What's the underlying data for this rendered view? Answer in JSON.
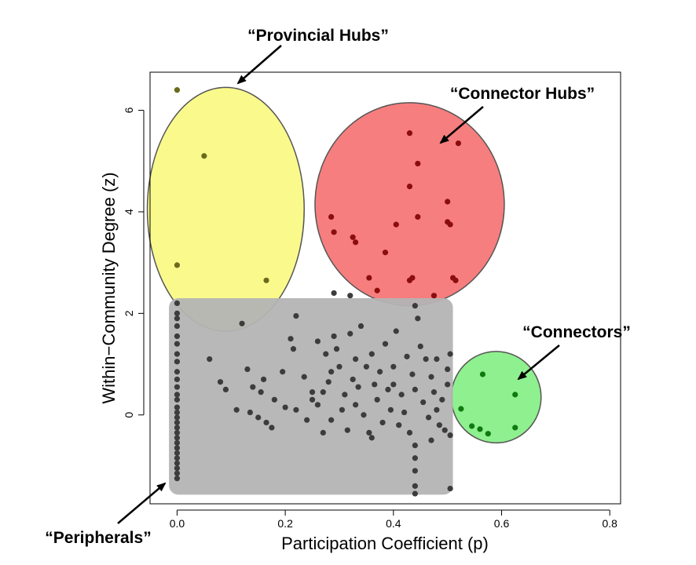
{
  "chart_data": {
    "type": "scatter",
    "xlabel": "Participation Coefficient (p)",
    "ylabel": "Within−Community Degree (z)",
    "xlim": [
      -0.05,
      0.82
    ],
    "ylim": [
      -1.75,
      6.75
    ],
    "x_ticks": [
      0.0,
      0.2,
      0.4,
      0.6,
      0.8
    ],
    "x_tick_labels": [
      "0.0",
      "0.2",
      "0.4",
      "0.6",
      "0.8"
    ],
    "y_ticks": [
      0,
      2,
      4,
      6
    ],
    "y_tick_labels": [
      "0",
      "2",
      "4",
      "6"
    ],
    "grid": false,
    "regions": [
      {
        "label": "“Provincial Hubs”",
        "shape": "ellipse",
        "color": "#fafa8c",
        "cx": 0.09,
        "cy": 4.05,
        "rx": 0.145,
        "ry": 2.4
      },
      {
        "label": "“Connector Hubs”",
        "shape": "ellipse",
        "color": "#f77e7e",
        "cx": 0.43,
        "cy": 4.15,
        "rx": 0.175,
        "ry": 2.0
      },
      {
        "label": "“Connectors”",
        "shape": "ellipse",
        "color": "#8ff08f",
        "cx": 0.59,
        "cy": 0.35,
        "rx": 0.083,
        "ry": 0.9
      },
      {
        "label": "“Peripherals”",
        "shape": "rect",
        "color": "#b4b4b4",
        "x0": -0.015,
        "x1": 0.51,
        "y0": -1.57,
        "y1": 2.3
      }
    ],
    "series": [
      {
        "group": "provincial_hubs",
        "color": "#6b6b1e",
        "points": [
          [
            0.0,
            6.4
          ],
          [
            0.05,
            5.1
          ],
          [
            0.0,
            2.95
          ],
          [
            0.165,
            2.65
          ]
        ]
      },
      {
        "group": "connector_hubs",
        "color": "#8b0d0d",
        "points": [
          [
            0.43,
            5.55
          ],
          [
            0.52,
            5.35
          ],
          [
            0.445,
            4.95
          ],
          [
            0.43,
            4.5
          ],
          [
            0.5,
            4.2
          ],
          [
            0.285,
            3.9
          ],
          [
            0.445,
            3.9
          ],
          [
            0.5,
            3.8
          ],
          [
            0.505,
            3.75
          ],
          [
            0.405,
            3.75
          ],
          [
            0.29,
            3.6
          ],
          [
            0.325,
            3.5
          ],
          [
            0.33,
            3.4
          ],
          [
            0.385,
            3.2
          ],
          [
            0.355,
            2.7
          ],
          [
            0.435,
            2.7
          ],
          [
            0.43,
            2.65
          ],
          [
            0.51,
            2.7
          ],
          [
            0.515,
            2.65
          ],
          [
            0.37,
            2.45
          ],
          [
            0.475,
            2.35
          ]
        ]
      },
      {
        "group": "connectors",
        "color": "#0f7a0f",
        "points": [
          [
            0.565,
            0.8
          ],
          [
            0.625,
            0.4
          ],
          [
            0.525,
            0.12
          ],
          [
            0.545,
            -0.22
          ],
          [
            0.56,
            -0.28
          ],
          [
            0.575,
            -0.37
          ],
          [
            0.625,
            -0.25
          ]
        ]
      },
      {
        "group": "peripherals",
        "color": "#3c3c3c",
        "points": [
          [
            0.0,
            2.2
          ],
          [
            0.0,
            2.0
          ],
          [
            0.0,
            1.9
          ],
          [
            0.0,
            1.75
          ],
          [
            0.0,
            1.55
          ],
          [
            0.0,
            1.4
          ],
          [
            0.0,
            1.2
          ],
          [
            0.0,
            1.05
          ],
          [
            0.0,
            0.85
          ],
          [
            0.0,
            0.7
          ],
          [
            0.0,
            0.55
          ],
          [
            0.0,
            0.4
          ],
          [
            0.0,
            0.3
          ],
          [
            0.0,
            0.15
          ],
          [
            0.0,
            0.05
          ],
          [
            0.0,
            -0.05
          ],
          [
            0.0,
            -0.15
          ],
          [
            0.0,
            -0.25
          ],
          [
            0.0,
            -0.35
          ],
          [
            0.0,
            -0.45
          ],
          [
            0.0,
            -0.55
          ],
          [
            0.0,
            -0.65
          ],
          [
            0.0,
            -0.75
          ],
          [
            0.0,
            -0.85
          ],
          [
            0.0,
            -0.95
          ],
          [
            0.0,
            -1.05
          ],
          [
            0.0,
            -1.15
          ],
          [
            0.0,
            -1.25
          ],
          [
            0.06,
            1.1
          ],
          [
            0.08,
            0.65
          ],
          [
            0.09,
            0.5
          ],
          [
            0.11,
            0.1
          ],
          [
            0.12,
            1.8
          ],
          [
            0.13,
            0.9
          ],
          [
            0.135,
            0.05
          ],
          [
            0.14,
            0.55
          ],
          [
            0.15,
            -0.05
          ],
          [
            0.155,
            0.45
          ],
          [
            0.16,
            0.7
          ],
          [
            0.165,
            -0.15
          ],
          [
            0.175,
            -0.25
          ],
          [
            0.18,
            0.3
          ],
          [
            0.195,
            0.85
          ],
          [
            0.2,
            0.15
          ],
          [
            0.21,
            1.5
          ],
          [
            0.215,
            1.3
          ],
          [
            0.22,
            1.95
          ],
          [
            0.22,
            0.1
          ],
          [
            0.235,
            0.75
          ],
          [
            0.24,
            -0.1
          ],
          [
            0.25,
            0.45
          ],
          [
            0.26,
            1.45
          ],
          [
            0.26,
            0.2
          ],
          [
            0.27,
            -0.35
          ],
          [
            0.275,
            1.2
          ],
          [
            0.28,
            0.65
          ],
          [
            0.285,
            0.85
          ],
          [
            0.285,
            -0.1
          ],
          [
            0.29,
            1.55
          ],
          [
            0.295,
            1.3
          ],
          [
            0.3,
            0.95
          ],
          [
            0.305,
            0.1
          ],
          [
            0.31,
            0.4
          ],
          [
            0.315,
            -0.3
          ],
          [
            0.32,
            1.6
          ],
          [
            0.325,
            0.7
          ],
          [
            0.33,
            1.1
          ],
          [
            0.33,
            0.2
          ],
          [
            0.335,
            0.55
          ],
          [
            0.34,
            1.75
          ],
          [
            0.345,
            0.0
          ],
          [
            0.35,
            0.95
          ],
          [
            0.355,
            -0.35
          ],
          [
            0.36,
            1.2
          ],
          [
            0.365,
            0.6
          ],
          [
            0.37,
            0.3
          ],
          [
            0.375,
            0.85
          ],
          [
            0.38,
            -0.15
          ],
          [
            0.385,
            1.4
          ],
          [
            0.39,
            0.5
          ],
          [
            0.395,
            0.1
          ],
          [
            0.4,
            0.95
          ],
          [
            0.405,
            1.65
          ],
          [
            0.41,
            -0.2
          ],
          [
            0.415,
            0.4
          ],
          [
            0.42,
            0.05
          ],
          [
            0.425,
            1.15
          ],
          [
            0.43,
            -0.35
          ],
          [
            0.435,
            0.8
          ],
          [
            0.44,
            0.5
          ],
          [
            0.445,
            1.9
          ],
          [
            0.45,
            1.35
          ],
          [
            0.455,
            0.25
          ],
          [
            0.46,
            1.1
          ],
          [
            0.465,
            -0.05
          ],
          [
            0.47,
            0.75
          ],
          [
            0.475,
            0.45
          ],
          [
            0.48,
            1.1
          ],
          [
            0.485,
            -0.2
          ],
          [
            0.49,
            0.3
          ],
          [
            0.495,
            -0.3
          ],
          [
            0.5,
            0.9
          ],
          [
            0.5,
            0.6
          ],
          [
            0.505,
            -0.4
          ],
          [
            0.505,
            1.2
          ],
          [
            0.29,
            2.4
          ],
          [
            0.32,
            2.35
          ],
          [
            0.44,
            2.15
          ],
          [
            0.44,
            -0.6
          ],
          [
            0.44,
            -0.85
          ],
          [
            0.44,
            -1.1
          ],
          [
            0.44,
            -1.4
          ],
          [
            0.44,
            -1.55
          ],
          [
            0.505,
            -1.45
          ],
          [
            0.47,
            -0.5
          ],
          [
            0.4,
            0.6
          ],
          [
            0.36,
            -0.45
          ],
          [
            0.27,
            0.45
          ],
          [
            0.25,
            0.3
          ],
          [
            0.48,
            0.1
          ]
        ]
      }
    ],
    "annotations": [
      {
        "text": "“Provincial Hubs”",
        "target": [
          0.105,
          6.5
        ]
      },
      {
        "text": "“Connector Hubs”",
        "target": [
          0.5,
          5.4
        ]
      },
      {
        "text": "“Connectors”",
        "target": [
          0.635,
          0.7
        ]
      },
      {
        "text": "“Peripherals”",
        "target": [
          0.0,
          -1.55
        ]
      }
    ]
  }
}
